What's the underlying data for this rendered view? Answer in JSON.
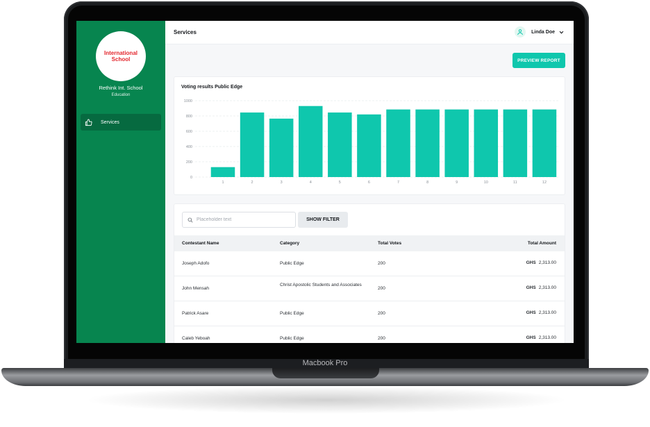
{
  "device": {
    "brand_label": "Macbook Pro"
  },
  "sidebar": {
    "logo_text": "International School",
    "org_name": "Rethink Int. School",
    "org_type": "Education",
    "items": [
      {
        "label": "Services",
        "icon": "thumbs-up-icon"
      }
    ]
  },
  "header": {
    "title": "Services",
    "user_name": "Linda Doe",
    "user_icon": "user-icon"
  },
  "actions": {
    "preview_report_label": "PREVIEW REPORT"
  },
  "colors": {
    "sidebar": "#07854f",
    "accent": "#0fc7ad"
  },
  "chart_data": {
    "type": "bar",
    "title": "Voting results Public Edge",
    "categories": [
      "1",
      "2",
      "3",
      "4",
      "5",
      "6",
      "7",
      "8",
      "9",
      "10",
      "11",
      "12"
    ],
    "values": [
      130,
      845,
      765,
      930,
      845,
      820,
      885,
      885,
      885,
      885,
      885,
      885
    ],
    "yticks": [
      0,
      200,
      400,
      600,
      800,
      1000
    ],
    "ylim": [
      0,
      1000
    ],
    "grid": true,
    "color": "#0fc7ad"
  },
  "table": {
    "search_placeholder": "Placeholder text",
    "filter_label": "SHOW FILTER",
    "columns": [
      "Contestant Name",
      "Category",
      "Total Votes",
      "Total Amount"
    ],
    "rows": [
      {
        "name": "Joseph Adofo",
        "category": "Public Edge",
        "votes": "200",
        "currency": "GHS",
        "amount": "2,313.00"
      },
      {
        "name": "John Mensah",
        "category": "Christ Apostolic Students and Associates",
        "votes": "200",
        "currency": "GHS",
        "amount": "2,313.00"
      },
      {
        "name": "Patrick Asare",
        "category": "Public Edge",
        "votes": "200",
        "currency": "GHS",
        "amount": "2,313.00"
      },
      {
        "name": "Caleb Yeboah",
        "category": "Public Edge",
        "votes": "200",
        "currency": "GHS",
        "amount": "2,313.00"
      }
    ]
  }
}
